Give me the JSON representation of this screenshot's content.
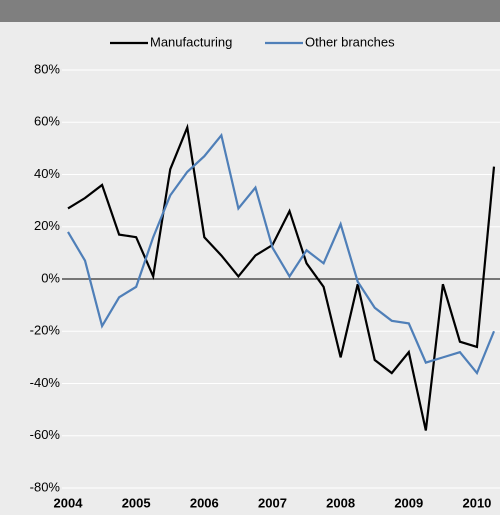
{
  "chart_data": {
    "type": "line",
    "categories": [
      "2004",
      null,
      null,
      null,
      "2005",
      null,
      null,
      null,
      "2006",
      null,
      null,
      null,
      "2007",
      null,
      null,
      null,
      "2008",
      null,
      null,
      null,
      "2009",
      null,
      null,
      null,
      "2010",
      null
    ],
    "series": [
      {
        "name": "Manufacturing",
        "color": "#000000",
        "values": [
          27,
          31,
          36,
          17,
          16,
          1,
          42,
          58,
          16,
          9,
          1,
          9,
          13,
          26,
          6,
          -3,
          -30,
          -2,
          -31,
          -36,
          -28,
          -58,
          -2,
          -24,
          -26,
          43
        ]
      },
      {
        "name": "Other branches",
        "color": "#4f7fb8",
        "values": [
          18,
          7,
          -18,
          -7,
          -3,
          16,
          32,
          41,
          47,
          55,
          27,
          35,
          12,
          1,
          11,
          6,
          21,
          -1,
          -11,
          -16,
          -17,
          -32,
          -30,
          -28,
          -36,
          -20
        ]
      }
    ],
    "ylim": [
      -80,
      80
    ],
    "yticks": [
      {
        "value": -80,
        "label": "-80%"
      },
      {
        "value": -60,
        "label": "-60%"
      },
      {
        "value": -40,
        "label": "-40%"
      },
      {
        "value": -20,
        "label": "-20%"
      },
      {
        "value": 0,
        "label": "0%"
      },
      {
        "value": 20,
        "label": "20%"
      },
      {
        "value": 40,
        "label": "40%"
      },
      {
        "value": 60,
        "label": "60%"
      },
      {
        "value": 80,
        "label": "80%"
      }
    ],
    "grid": true,
    "legend": "top"
  }
}
